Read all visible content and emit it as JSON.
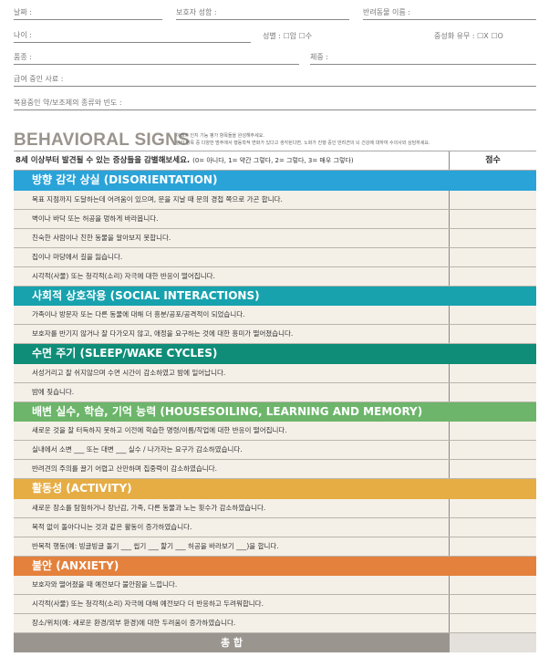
{
  "form": {
    "date": "날짜 :",
    "guardian": "보호자 성함 :",
    "pet_name": "반려동물 이름 :",
    "age": "나이 :",
    "sex": "성별 : ☐암   ☐수",
    "neuter": "중성화 유무 : ☐X    ☐O",
    "breed": "품종 :",
    "weight": "체중 :",
    "food": "급여 중인 사료 :",
    "meds": "복용중인 약/보조제의 종류와 빈도 :"
  },
  "heading": {
    "title": "BEHAVIORAL SIGNS",
    "note1": "아래의 인지 기능 평가 항목들을 완성해주세요.",
    "note2": "평가 항목 중 다양한 범주에서 행동학적 변화가 있다고 생각된다면, 노화가 진행 중인 반려견의 뇌 건강에 대하여 수의사와 상담하세요."
  },
  "table": {
    "question": "8세 이상부터 발견될 수 있는 증상들을 감별해보세요.",
    "scale": "(0= 아니다, 1= 약간 그렇다, 2= 그렇다, 3= 매우 그렇다)",
    "score_header": "점수",
    "sections": [
      {
        "title": "방향 감각 상실 (DISORIENTATION)",
        "color": "#2aa3d8",
        "items": [
          "목표 지점까지 도달하는데 어려움이 있으며, 문을 지날 때 문의 경첩 쪽으로 가곤 합니다.",
          "벽이나 바닥 또는 허공을 멍하게 바라봅니다.",
          "친숙한 사람이나 친한 동물을 알아보지 못합니다.",
          "집이나 마당에서 길을 잃습니다.",
          "시각적(사물) 또는 청각적(소리) 자극에 대한 반응이 떨어집니다."
        ]
      },
      {
        "title": "사회적 상호작용 (SOCIAL INTERACTIONS)",
        "color": "#17a2ae",
        "items": [
          "가족이나 방문자 또는 다른 동물에 대해 더 흥분/공포/공격적이 되었습니다.",
          "보호자를 반기지 않거나 잘 다가오지 않고, 애정을 요구하는 것에 대한 흥미가 떨어졌습니다."
        ]
      },
      {
        "title": "수면 주기 (SLEEP/WAKE CYCLES)",
        "color": "#0f8d78",
        "items": [
          "서성거리고 잘 쉬지않으며 수면 시간이 감소하였고 밤에 일어납니다.",
          "밤에 짖습니다."
        ]
      },
      {
        "title": "배변 실수, 학습, 기억 능력 (HOUSESOILING, LEARNING AND MEMORY)",
        "color": "#6cb56a",
        "items": [
          "새로운 것을 잘 터득하지 못하고 이전에 학습한 명령/이름/작업에 대한 반응이 떨어집니다.",
          "실내에서 소변 ___ 또는 대변 ___ 실수 / 나가자는 요구가 감소하였습니다.",
          "반려견의 주의를 끌기 어렵고 산만하며 집중력이 감소하였습니다."
        ]
      },
      {
        "title": "활동성 (ACTIVITY)",
        "color": "#e6ad45",
        "items": [
          "새로운 장소를 탐험하거나 장난감, 가족, 다른 동물과 노는 횟수가 감소하였습니다.",
          "목적 없이 돌아다니는 것과 같은 활동이 증가하였습니다.",
          "반복적 행동(예: 빙글빙글 돌기 ___ 씹기 ___ 핥기 ___ 허공을 바라보기 ___)을 합니다."
        ]
      },
      {
        "title": "불안 (ANXIETY)",
        "color": "#e4813c",
        "items": [
          "보호자와 떨어졌을 때 예전보다 불안함을 느낍니다.",
          "시각적(사물) 또는 청각적(소리) 자극에 대해 예전보다 더 반응하고 두려워합니다.",
          "장소/위치(예: 새로운 환경/외부 환경)에 대한 두려움이 증가하였습니다."
        ]
      }
    ],
    "total": "총 합"
  }
}
